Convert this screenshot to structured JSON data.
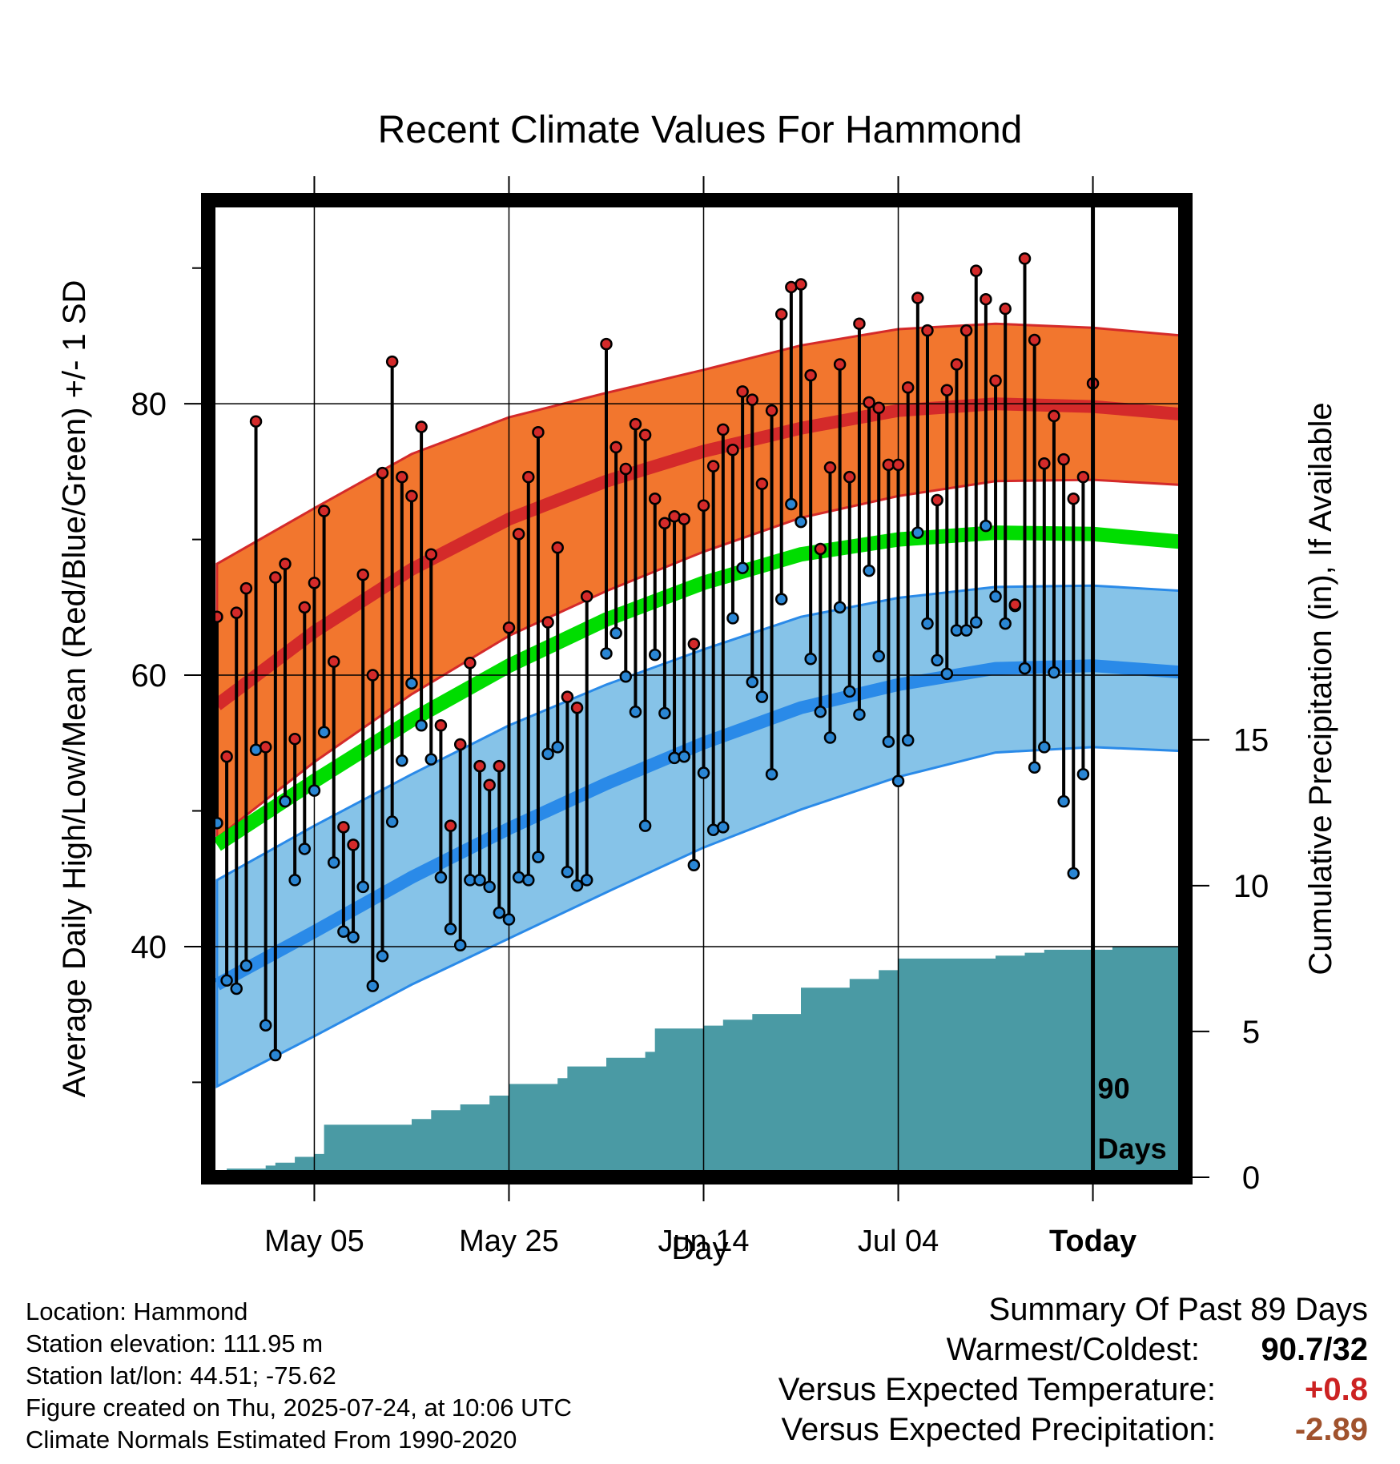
{
  "chart_data": {
    "type": "line",
    "title": "Recent Climate Values For Hammond",
    "xlabel": "Day",
    "ylabel": "Average Daily High/Low/Mean (Red/Blue/Green) +/- 1 SD",
    "ylabel_right": "Cumulative Precipitation (in), If Available",
    "xticks": [
      {
        "label": "May 05",
        "day": 10
      },
      {
        "label": "May 25",
        "day": 30
      },
      {
        "label": "Jun 14",
        "day": 50
      },
      {
        "label": "Jul 04",
        "day": 70
      },
      {
        "label": "Today",
        "day": 90
      }
    ],
    "xlim": [
      -0.9,
      99.5
    ],
    "ylim_temp": [
      23,
      95
    ],
    "yticks_temp": [
      40,
      60,
      80
    ],
    "ylim_precip": [
      0,
      33.5
    ],
    "yticks_precip": [
      0,
      5,
      10,
      15
    ],
    "today_marker": {
      "day": 90,
      "label_line1": "90",
      "label_line2": "Days"
    },
    "normals": {
      "days": [
        0,
        10,
        20,
        30,
        40,
        50,
        60,
        70,
        80,
        90,
        99.5
      ],
      "high_mean": [
        57.8,
        63.2,
        67.8,
        71.5,
        74.3,
        76.5,
        78.2,
        79.5,
        80.0,
        79.8,
        79.2
      ],
      "high_upper": [
        68.2,
        72.3,
        76.3,
        79.0,
        80.8,
        82.5,
        84.3,
        85.5,
        85.9,
        85.6,
        85.0
      ],
      "high_lower": [
        48.0,
        53.6,
        58.6,
        62.9,
        66.2,
        69.1,
        71.6,
        73.2,
        74.3,
        74.4,
        74.0
      ],
      "mean_normal": [
        47.5,
        52.2,
        56.7,
        60.7,
        64.1,
        66.8,
        68.9,
        70.0,
        70.5,
        70.4,
        69.8
      ],
      "low_mean": [
        37.2,
        41.1,
        45.1,
        48.7,
        52.0,
        55.0,
        57.6,
        59.3,
        60.5,
        60.7,
        60.2
      ],
      "low_upper": [
        44.9,
        48.9,
        52.7,
        56.3,
        59.3,
        61.9,
        64.3,
        65.7,
        66.5,
        66.6,
        66.2
      ],
      "low_lower": [
        29.7,
        33.4,
        37.2,
        40.6,
        44.0,
        47.3,
        50.1,
        52.5,
        54.3,
        54.7,
        54.4
      ]
    },
    "series": [
      {
        "name": "High",
        "color": "#d42a2a",
        "values": [
          64.3,
          54,
          64.6,
          66.4,
          78.7,
          54.7,
          67.2,
          68.2,
          55.3,
          65,
          66.8,
          72.1,
          61,
          48.8,
          47.5,
          67.4,
          60,
          74.9,
          83.1,
          74.6,
          73.2,
          78.3,
          68.9,
          56.3,
          48.9,
          54.9,
          60.9,
          53.3,
          51.9,
          53.3,
          63.5,
          70.4,
          74.6,
          77.9,
          63.9,
          69.4,
          58.4,
          57.6,
          65.8,
          null,
          84.4,
          76.8,
          75.2,
          78.5,
          77.7,
          73,
          71.2,
          71.7,
          71.5,
          62.3,
          72.5,
          75.4,
          78.1,
          76.6,
          80.9,
          80.3,
          74.1,
          79.5,
          86.6,
          88.6,
          88.8,
          82.1,
          69.3,
          75.3,
          82.9,
          74.6,
          85.9,
          80.1,
          79.7,
          75.5,
          75.5,
          81.2,
          87.8,
          85.4,
          72.9,
          81,
          82.9,
          85.4,
          89.8,
          87.7,
          81.7,
          87,
          65.2,
          90.7,
          84.7,
          75.6,
          79.1,
          75.9,
          73,
          74.6,
          81.5
        ]
      },
      {
        "name": "Low",
        "color": "#2a86d4",
        "values": [
          49.1,
          37.5,
          36.9,
          38.6,
          54.5,
          34.2,
          32,
          50.7,
          44.9,
          47.2,
          51.5,
          55.8,
          46.2,
          41.1,
          40.7,
          44.4,
          37.1,
          39.3,
          49.2,
          53.7,
          59.4,
          56.3,
          53.8,
          45.1,
          41.3,
          40.1,
          44.9,
          44.9,
          44.4,
          42.5,
          42,
          45.1,
          44.9,
          46.6,
          54.2,
          54.7,
          45.5,
          44.5,
          44.9,
          null,
          61.6,
          63.1,
          59.9,
          57.3,
          48.9,
          61.5,
          57.2,
          53.9,
          54,
          46,
          52.8,
          48.6,
          48.8,
          64.2,
          67.9,
          59.5,
          58.4,
          52.7,
          65.6,
          72.6,
          71.3,
          61.2,
          57.3,
          55.4,
          65,
          58.8,
          57.1,
          67.7,
          61.4,
          55.1,
          52.2,
          55.2,
          70.5,
          63.8,
          61.1,
          60.1,
          63.3,
          63.3,
          63.9,
          71,
          65.8,
          63.8,
          65.1,
          60.5,
          53.2,
          54.7,
          60.2,
          50.7,
          45.4,
          52.7,
          null
        ]
      }
    ],
    "precip_cumulative": {
      "days": [
        0,
        1,
        5,
        6,
        8,
        10,
        11,
        20,
        22,
        25,
        28,
        30,
        35,
        36,
        40,
        44,
        45,
        50,
        52,
        55,
        60,
        65,
        68,
        70,
        75,
        80,
        83,
        85,
        90,
        92,
        99.5
      ],
      "values": [
        0,
        0.3,
        0.4,
        0.5,
        0.7,
        0.8,
        1.8,
        2.0,
        2.3,
        2.5,
        2.8,
        3.2,
        3.4,
        3.8,
        4.1,
        4.3,
        5.1,
        5.2,
        5.4,
        5.6,
        6.5,
        6.8,
        7.1,
        7.5,
        7.5,
        7.6,
        7.7,
        7.8,
        7.8,
        7.9,
        7.9
      ]
    }
  },
  "meta": {
    "location": "Location: Hammond",
    "elevation": "Station elevation: 111.95 m",
    "latlon": "Station lat/lon: 44.51; -75.62",
    "created": "Figure created on Thu, 2025-07-24, at 10:06 UTC",
    "normals": "Climate Normals Estimated From 1990-2020"
  },
  "summary": {
    "title": "Summary Of Past 89 Days",
    "warmest_label": "Warmest/Coldest:",
    "warmest_value": "90.7/32",
    "temp_label": "Versus Expected Temperature:",
    "temp_value": "+0.8",
    "temp_color": "#cc2222",
    "precip_label": "Versus Expected Precipitation:",
    "precip_value": "-2.89",
    "precip_color": "#a0522d"
  },
  "colors": {
    "high_band": "#f2762e",
    "high_line": "#d42a2a",
    "low_band": "#86c3e8",
    "low_line": "#2a8ae8",
    "mean_band": "#00dd00",
    "precip": "#4a9aa4",
    "frame": "#000000"
  }
}
